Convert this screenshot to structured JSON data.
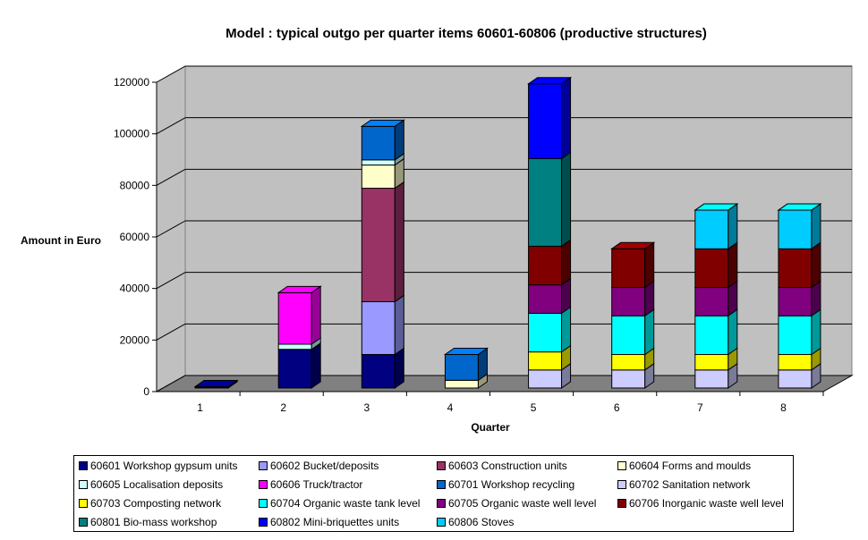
{
  "chart_data": {
    "type": "bar",
    "stacked": true,
    "title": "Model : typical outgo per quarter items 60601-60806 (productive structures)",
    "xlabel": "Quarter",
    "ylabel": "Amount in Euro",
    "ylim": [
      0,
      120000
    ],
    "yticks": [
      "0",
      "20000",
      "40000",
      "60000",
      "80000",
      "100000",
      "120000"
    ],
    "categories": [
      "1",
      "2",
      "3",
      "4",
      "5",
      "6",
      "7",
      "8"
    ],
    "grid": true,
    "legend_position": "bottom",
    "background_color": "#c0c0c0",
    "series": [
      {
        "name": "60601 Workshop gypsum units",
        "color": "#000080",
        "values": [
          500,
          15000,
          13000,
          0,
          0,
          0,
          0,
          0
        ]
      },
      {
        "name": "60602 Bucket/deposits",
        "color": "#9999ff",
        "values": [
          0,
          0,
          20500,
          0,
          0,
          0,
          0,
          0
        ]
      },
      {
        "name": "60603 Construction units",
        "color": "#993366",
        "values": [
          0,
          0,
          44000,
          0,
          0,
          0,
          0,
          0
        ]
      },
      {
        "name": "60604 Forms and moulds",
        "color": "#ffffcc",
        "values": [
          0,
          0,
          9000,
          3000,
          0,
          0,
          0,
          0
        ]
      },
      {
        "name": "60605 Localisation deposits",
        "color": "#ccffff",
        "values": [
          0,
          2000,
          2000,
          0,
          0,
          0,
          0,
          0
        ]
      },
      {
        "name": "60606 Truck/tractor",
        "color": "#ff00ff",
        "values": [
          0,
          20000,
          0,
          0,
          0,
          0,
          0,
          0
        ]
      },
      {
        "name": "60701 Workshop recycling",
        "color": "#0066cc",
        "values": [
          0,
          0,
          13000,
          10000,
          0,
          0,
          0,
          0
        ]
      },
      {
        "name": "60702 Sanitation network",
        "color": "#ccccff",
        "values": [
          0,
          0,
          0,
          0,
          7000,
          7000,
          7000,
          7000
        ]
      },
      {
        "name": "60703 Composting network",
        "color": "#ffff00",
        "values": [
          0,
          0,
          0,
          0,
          7000,
          6000,
          6000,
          6000
        ]
      },
      {
        "name": "60704 Organic waste tank level",
        "color": "#00ffff",
        "values": [
          0,
          0,
          0,
          0,
          15000,
          15000,
          15000,
          15000
        ]
      },
      {
        "name": "60705 Organic waste well level",
        "color": "#800080",
        "values": [
          0,
          0,
          0,
          0,
          11000,
          11000,
          11000,
          11000
        ]
      },
      {
        "name": "60706 Inorganic waste well level",
        "color": "#800000",
        "values": [
          0,
          0,
          0,
          0,
          15000,
          15000,
          15000,
          15000
        ]
      },
      {
        "name": "60801 Bio-mass workshop",
        "color": "#008080",
        "values": [
          0,
          0,
          0,
          0,
          34000,
          0,
          0,
          0
        ]
      },
      {
        "name": "60802 Mini-briquettes units",
        "color": "#0000ff",
        "values": [
          0,
          0,
          0,
          0,
          29000,
          0,
          0,
          0
        ]
      },
      {
        "name": "60806 Stoves",
        "color": "#00ccff",
        "values": [
          0,
          0,
          0,
          0,
          0,
          0,
          15000,
          15000
        ]
      }
    ]
  }
}
